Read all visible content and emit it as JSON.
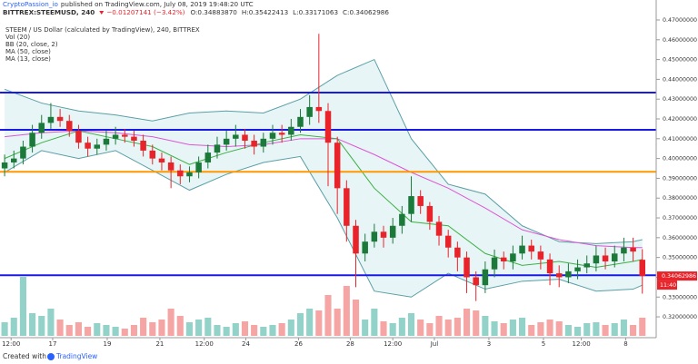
{
  "header": {
    "author": "CryptoPassion_io",
    "published": "published on TradingView.com, July 08, 2019 19:48:20 UTC",
    "symbol": "BITTREX:STEEMUSD, 240",
    "change": "−0.01207141 (−3.42%)",
    "ohlc": [
      "O:0.34883870",
      "H:0.35422413",
      "L:0.33171063",
      "C:0.34062986"
    ]
  },
  "footer": {
    "created": "Created with",
    "brand": "TradingView"
  },
  "chart_data": {
    "type": "candlestick",
    "title": "STEEM / US Dollar (calculated by TradingView), 240, BITTREX",
    "volume_name": "Vol (20)",
    "countdown": "11:40",
    "up_color": "#1b7a3a",
    "down_color": "#e8232a",
    "volume_up_color": "#93d2c8",
    "volume_down_color": "#f6a5a5",
    "open": [
      0.395,
      0.398,
      0.4,
      0.406,
      0.413,
      0.418,
      0.421,
      0.419,
      0.414,
      0.408,
      0.405,
      0.407,
      0.41,
      0.412,
      0.411,
      0.409,
      0.404,
      0.4,
      0.398,
      0.394,
      0.391,
      0.393,
      0.398,
      0.403,
      0.407,
      0.41,
      0.412,
      0.409,
      0.406,
      0.41,
      0.413,
      0.412,
      0.416,
      0.421,
      0.426,
      0.424,
      0.408,
      0.385,
      0.366,
      0.352,
      0.358,
      0.363,
      0.36,
      0.366,
      0.372,
      0.381,
      0.376,
      0.368,
      0.361,
      0.355,
      0.35,
      0.34,
      0.336,
      0.344,
      0.35,
      0.348,
      0.352,
      0.356,
      0.353,
      0.349,
      0.342,
      0.34,
      0.343,
      0.345,
      0.347,
      0.351,
      0.348,
      0.352,
      0.355,
      0.3488387
    ],
    "high": [
      0.402,
      0.404,
      0.409,
      0.417,
      0.422,
      0.428,
      0.425,
      0.422,
      0.417,
      0.411,
      0.41,
      0.414,
      0.416,
      0.415,
      0.414,
      0.412,
      0.407,
      0.403,
      0.401,
      0.397,
      0.396,
      0.401,
      0.407,
      0.411,
      0.414,
      0.417,
      0.415,
      0.412,
      0.413,
      0.417,
      0.417,
      0.42,
      0.425,
      0.432,
      0.463,
      0.428,
      0.411,
      0.389,
      0.369,
      0.362,
      0.367,
      0.366,
      0.37,
      0.376,
      0.391,
      0.384,
      0.378,
      0.371,
      0.364,
      0.358,
      0.353,
      0.343,
      0.348,
      0.354,
      0.353,
      0.356,
      0.361,
      0.359,
      0.356,
      0.352,
      0.346,
      0.347,
      0.349,
      0.351,
      0.356,
      0.355,
      0.356,
      0.36,
      0.36,
      0.35422413
    ],
    "low": [
      0.391,
      0.395,
      0.397,
      0.403,
      0.41,
      0.415,
      0.416,
      0.411,
      0.405,
      0.401,
      0.402,
      0.404,
      0.407,
      0.408,
      0.406,
      0.401,
      0.397,
      0.394,
      0.385,
      0.387,
      0.388,
      0.39,
      0.395,
      0.4,
      0.404,
      0.406,
      0.405,
      0.402,
      0.403,
      0.407,
      0.408,
      0.409,
      0.413,
      0.417,
      0.418,
      0.386,
      0.372,
      0.358,
      0.335,
      0.348,
      0.355,
      0.355,
      0.357,
      0.362,
      0.368,
      0.372,
      0.364,
      0.356,
      0.35,
      0.343,
      0.332,
      0.328,
      0.332,
      0.34,
      0.344,
      0.344,
      0.349,
      0.349,
      0.344,
      0.336,
      0.335,
      0.337,
      0.339,
      0.342,
      0.343,
      0.344,
      0.345,
      0.348,
      0.348,
      0.33171063
    ],
    "close": [
      0.398,
      0.4,
      0.406,
      0.413,
      0.418,
      0.421,
      0.419,
      0.414,
      0.408,
      0.405,
      0.407,
      0.41,
      0.412,
      0.411,
      0.409,
      0.404,
      0.4,
      0.398,
      0.394,
      0.391,
      0.393,
      0.398,
      0.403,
      0.407,
      0.41,
      0.412,
      0.409,
      0.406,
      0.41,
      0.413,
      0.412,
      0.416,
      0.421,
      0.426,
      0.424,
      0.408,
      0.385,
      0.366,
      0.352,
      0.358,
      0.363,
      0.36,
      0.366,
      0.372,
      0.381,
      0.376,
      0.368,
      0.361,
      0.355,
      0.35,
      0.34,
      0.336,
      0.344,
      0.35,
      0.348,
      0.352,
      0.356,
      0.353,
      0.349,
      0.342,
      0.34,
      0.343,
      0.345,
      0.347,
      0.351,
      0.348,
      0.352,
      0.355,
      0.353,
      0.34062986
    ],
    "volume": [
      15,
      20,
      65,
      25,
      22,
      30,
      18,
      12,
      15,
      10,
      14,
      12,
      10,
      8,
      12,
      20,
      15,
      18,
      30,
      22,
      15,
      18,
      20,
      12,
      10,
      14,
      16,
      12,
      10,
      12,
      14,
      18,
      25,
      30,
      28,
      45,
      30,
      55,
      40,
      18,
      30,
      16,
      14,
      20,
      25,
      18,
      14,
      22,
      18,
      20,
      30,
      28,
      22,
      16,
      14,
      18,
      20,
      12,
      15,
      18,
      16,
      12,
      10,
      14,
      15,
      12,
      14,
      18,
      12,
      20
    ],
    "indicators": [
      {
        "name": "BB (20, close, 2)",
        "color": "#5a9fa6",
        "fill": "#e8f5f6",
        "x": [
          0,
          4,
          8,
          12,
          16,
          20,
          24,
          28,
          32,
          36,
          40,
          44,
          48,
          52,
          56,
          60,
          64,
          68,
          69
        ],
        "upper": [
          0.435,
          0.428,
          0.424,
          0.422,
          0.419,
          0.423,
          0.424,
          0.423,
          0.43,
          0.442,
          0.45,
          0.41,
          0.387,
          0.382,
          0.366,
          0.358,
          0.357,
          0.358,
          0.359
        ],
        "lower": [
          0.393,
          0.404,
          0.4,
          0.404,
          0.394,
          0.384,
          0.392,
          0.398,
          0.401,
          0.37,
          0.333,
          0.33,
          0.342,
          0.334,
          0.338,
          0.339,
          0.333,
          0.334,
          0.336
        ]
      },
      {
        "name": "MA (50, close)",
        "color": "#dd55d6",
        "x": [
          0,
          4,
          8,
          12,
          16,
          20,
          24,
          28,
          32,
          36,
          40,
          44,
          48,
          52,
          56,
          60,
          64,
          68,
          69
        ],
        "values": [
          0.411,
          0.413,
          0.414,
          0.413,
          0.411,
          0.407,
          0.406,
          0.407,
          0.41,
          0.41,
          0.402,
          0.393,
          0.385,
          0.375,
          0.364,
          0.359,
          0.356,
          0.355,
          0.355
        ]
      },
      {
        "name": "MA (13, close)",
        "color": "#3cb043",
        "x": [
          0,
          4,
          8,
          12,
          16,
          20,
          24,
          28,
          32,
          36,
          40,
          44,
          48,
          52,
          56,
          60,
          64,
          68,
          69
        ],
        "values": [
          0.4,
          0.408,
          0.414,
          0.41,
          0.406,
          0.397,
          0.403,
          0.408,
          0.412,
          0.41,
          0.385,
          0.368,
          0.366,
          0.352,
          0.346,
          0.348,
          0.345,
          0.348,
          0.349
        ]
      }
    ],
    "levels": [
      {
        "value": 0.4333,
        "color": "#1a1ae6"
      },
      {
        "value": 0.4145,
        "color": "#1a1ae6"
      },
      {
        "value": 0.3933,
        "color": "#ff9800"
      },
      {
        "value": 0.341,
        "color": "#1a1ae6"
      }
    ],
    "xlim": [
      -0.5,
      70.5
    ],
    "ylim": [
      0.3104,
      0.4732
    ],
    "xticks": [
      {
        "value": 0.7,
        "label": "12:00"
      },
      {
        "value": 5.2,
        "label": "17"
      },
      {
        "value": 11.1,
        "label": "19"
      },
      {
        "value": 16.8,
        "label": "21"
      },
      {
        "value": 21.6,
        "label": "12:00"
      },
      {
        "value": 26.1,
        "label": "24"
      },
      {
        "value": 31.8,
        "label": "26"
      },
      {
        "value": 37.4,
        "label": "28"
      },
      {
        "value": 42.0,
        "label": "12:00"
      },
      {
        "value": 46.5,
        "label": "Jul"
      },
      {
        "value": 52.4,
        "label": "3"
      },
      {
        "value": 58.3,
        "label": "5"
      },
      {
        "value": 62.4,
        "label": "12:00"
      },
      {
        "value": 67.2,
        "label": "8"
      }
    ],
    "yticks": [
      {
        "value": 0.32,
        "label": "0.32000000"
      },
      {
        "value": 0.33,
        "label": "0.33000000"
      },
      {
        "value": 0.34,
        "label": "0.34000000"
      },
      {
        "value": 0.35,
        "label": "0.35000000"
      },
      {
        "value": 0.36,
        "label": "0.36000000"
      },
      {
        "value": 0.37,
        "label": "0.37000000"
      },
      {
        "value": 0.38,
        "label": "0.38000000"
      },
      {
        "value": 0.39,
        "label": "0.39000000"
      },
      {
        "value": 0.4,
        "label": "0.40000000"
      },
      {
        "value": 0.41,
        "label": "0.41000000"
      },
      {
        "value": 0.42,
        "label": "0.42000000"
      },
      {
        "value": 0.43,
        "label": "0.43000000"
      },
      {
        "value": 0.44,
        "label": "0.44000000"
      },
      {
        "value": 0.45,
        "label": "0.45000000"
      },
      {
        "value": 0.46,
        "label": "0.46000000"
      },
      {
        "value": 0.47,
        "label": "0.47000000"
      }
    ],
    "grid": false
  }
}
